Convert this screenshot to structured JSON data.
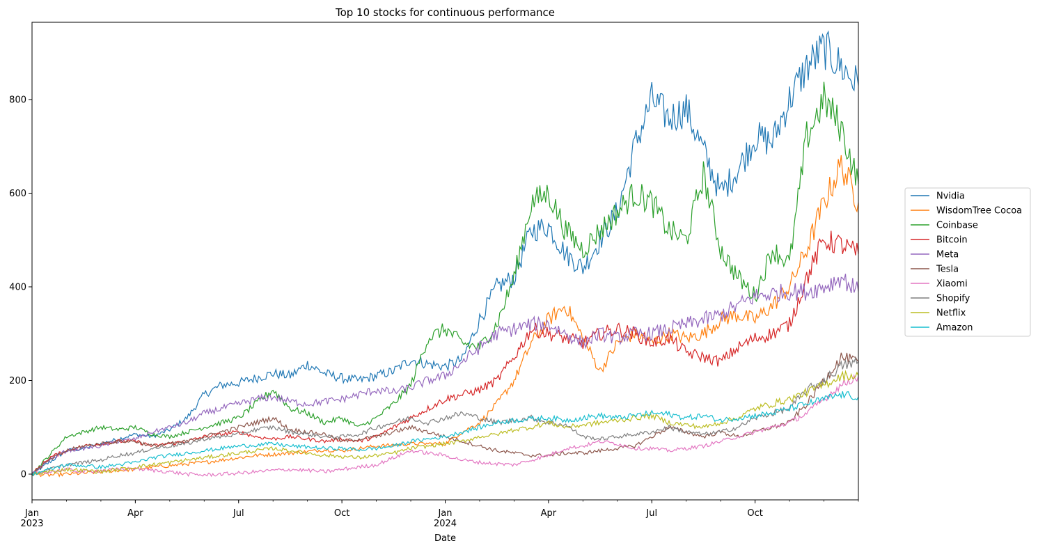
{
  "chart_data": {
    "type": "line",
    "title": "Top 10 stocks for continuous performance",
    "xlabel": "Date",
    "ylabel": "",
    "ylim": [
      -55,
      965
    ],
    "yticks": [
      0,
      200,
      400,
      600,
      800
    ],
    "xlim": [
      0,
      24
    ],
    "xticks": [
      {
        "m": 0,
        "label": "Jan",
        "sub": "2023"
      },
      {
        "m": 3,
        "label": "Apr",
        "sub": ""
      },
      {
        "m": 6,
        "label": "Jul",
        "sub": ""
      },
      {
        "m": 9,
        "label": "Oct",
        "sub": ""
      },
      {
        "m": 12,
        "label": "Jan",
        "sub": "2024"
      },
      {
        "m": 15,
        "label": "Apr",
        "sub": ""
      },
      {
        "m": 18,
        "label": "Jul",
        "sub": ""
      },
      {
        "m": 21,
        "label": "Oct",
        "sub": ""
      }
    ],
    "legend_position": "right",
    "x": [
      0,
      0.5,
      1,
      1.5,
      2,
      2.5,
      3,
      3.5,
      4,
      4.5,
      5,
      5.5,
      6,
      6.5,
      7,
      7.5,
      8,
      8.5,
      9,
      9.5,
      10,
      10.5,
      11,
      11.5,
      12,
      12.5,
      13,
      13.5,
      14,
      14.5,
      15,
      15.5,
      16,
      16.5,
      17,
      17.5,
      18,
      18.5,
      19,
      19.5,
      20,
      20.5,
      21,
      21.5,
      22,
      22.5,
      23,
      23.5,
      24
    ],
    "series": [
      {
        "name": "Nvidia",
        "color": "#1f77b4",
        "values": [
          0,
          25,
          50,
          55,
          65,
          75,
          85,
          80,
          95,
          120,
          170,
          190,
          195,
          205,
          215,
          210,
          235,
          215,
          205,
          200,
          210,
          220,
          245,
          235,
          230,
          245,
          330,
          400,
          420,
          520,
          530,
          470,
          440,
          500,
          560,
          700,
          800,
          760,
          780,
          690,
          600,
          650,
          720,
          710,
          800,
          870,
          910,
          870,
          830
        ]
      },
      {
        "name": "WisdomTree Cocoa",
        "color": "#ff7f0e",
        "values": [
          0,
          -2,
          0,
          2,
          5,
          8,
          10,
          15,
          18,
          22,
          25,
          30,
          35,
          40,
          42,
          45,
          48,
          52,
          50,
          55,
          60,
          62,
          65,
          65,
          65,
          90,
          110,
          150,
          200,
          280,
          330,
          360,
          290,
          220,
          280,
          300,
          280,
          300,
          290,
          300,
          330,
          340,
          330,
          360,
          400,
          480,
          580,
          660,
          580
        ]
      },
      {
        "name": "Coinbase",
        "color": "#2ca02c",
        "values": [
          0,
          40,
          80,
          90,
          100,
          95,
          100,
          85,
          80,
          90,
          100,
          110,
          120,
          150,
          180,
          140,
          130,
          110,
          120,
          100,
          120,
          150,
          190,
          290,
          310,
          280,
          270,
          320,
          420,
          580,
          600,
          520,
          480,
          520,
          560,
          600,
          580,
          520,
          500,
          640,
          480,
          420,
          380,
          480,
          450,
          720,
          800,
          740,
          620
        ]
      },
      {
        "name": "Bitcoin",
        "color": "#d62728",
        "values": [
          0,
          35,
          50,
          60,
          65,
          70,
          70,
          60,
          65,
          70,
          80,
          85,
          90,
          80,
          75,
          80,
          75,
          70,
          75,
          70,
          80,
          100,
          120,
          140,
          160,
          170,
          180,
          200,
          250,
          310,
          300,
          290,
          280,
          300,
          310,
          300,
          280,
          290,
          260,
          250,
          240,
          270,
          290,
          300,
          320,
          420,
          500,
          490,
          470
        ]
      },
      {
        "name": "Meta",
        "color": "#9467bd",
        "values": [
          0,
          30,
          50,
          55,
          60,
          70,
          75,
          90,
          100,
          110,
          130,
          140,
          150,
          160,
          165,
          155,
          150,
          155,
          160,
          170,
          180,
          175,
          185,
          200,
          210,
          240,
          270,
          300,
          310,
          320,
          320,
          300,
          280,
          300,
          290,
          300,
          300,
          310,
          320,
          330,
          340,
          360,
          380,
          385,
          390,
          390,
          400,
          420,
          390
        ]
      },
      {
        "name": "Tesla",
        "color": "#8c564b",
        "values": [
          0,
          30,
          50,
          60,
          65,
          70,
          70,
          60,
          65,
          70,
          80,
          90,
          100,
          110,
          120,
          95,
          90,
          85,
          70,
          75,
          80,
          90,
          100,
          90,
          80,
          70,
          60,
          50,
          45,
          40,
          40,
          45,
          45,
          50,
          55,
          60,
          80,
          100,
          90,
          80,
          90,
          80,
          90,
          100,
          110,
          150,
          200,
          250,
          240
        ]
      },
      {
        "name": "Xiaomi",
        "color": "#e377c2",
        "values": [
          0,
          5,
          10,
          5,
          8,
          10,
          12,
          8,
          5,
          0,
          -2,
          0,
          2,
          5,
          8,
          10,
          8,
          5,
          10,
          15,
          20,
          35,
          50,
          45,
          40,
          30,
          25,
          22,
          20,
          30,
          40,
          55,
          60,
          70,
          65,
          55,
          55,
          50,
          55,
          60,
          70,
          80,
          90,
          100,
          110,
          130,
          160,
          190,
          210
        ]
      },
      {
        "name": "Shopify",
        "color": "#7f7f7f",
        "values": [
          0,
          10,
          20,
          25,
          30,
          40,
          45,
          55,
          60,
          65,
          75,
          80,
          85,
          95,
          100,
          90,
          85,
          80,
          80,
          85,
          100,
          110,
          120,
          110,
          120,
          130,
          120,
          110,
          115,
          120,
          110,
          105,
          80,
          75,
          80,
          85,
          90,
          100,
          90,
          85,
          90,
          100,
          120,
          130,
          140,
          180,
          200,
          230,
          240
        ]
      },
      {
        "name": "Netflix",
        "color": "#bcbd22",
        "values": [
          0,
          5,
          10,
          8,
          5,
          10,
          15,
          20,
          25,
          30,
          35,
          40,
          45,
          50,
          55,
          50,
          45,
          40,
          38,
          35,
          40,
          45,
          55,
          60,
          65,
          70,
          80,
          85,
          95,
          100,
          110,
          100,
          105,
          110,
          115,
          120,
          125,
          110,
          105,
          100,
          110,
          120,
          140,
          150,
          160,
          175,
          190,
          210,
          210
        ]
      },
      {
        "name": "Amazon",
        "color": "#17becf",
        "values": [
          0,
          10,
          20,
          18,
          15,
          20,
          25,
          35,
          40,
          45,
          50,
          55,
          60,
          62,
          65,
          60,
          58,
          55,
          55,
          52,
          55,
          60,
          70,
          75,
          80,
          90,
          100,
          110,
          115,
          118,
          120,
          115,
          120,
          125,
          120,
          125,
          130,
          128,
          120,
          125,
          115,
          120,
          125,
          130,
          140,
          150,
          160,
          170,
          165
        ]
      }
    ]
  }
}
